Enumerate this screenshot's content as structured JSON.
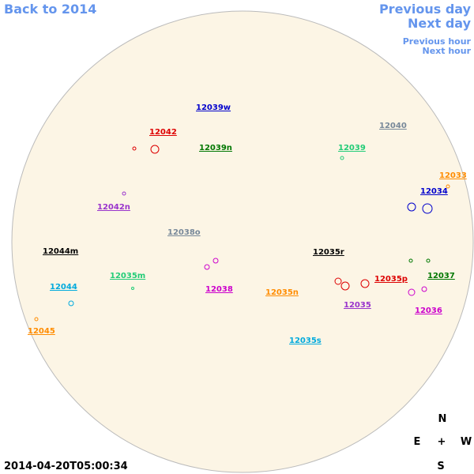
{
  "navigation": {
    "back": "Back to 2014",
    "previous_day": "Previous day",
    "next_day": "Next day",
    "previous_hour": "Previous hour",
    "next_hour": "Next hour"
  },
  "regions": [
    {
      "label": "12039w",
      "color": "#0000cc"
    },
    {
      "label": "12042",
      "color": "#dd0000"
    },
    {
      "label": "12039n",
      "color": "#007700"
    },
    {
      "label": "12040",
      "color": "#778899"
    },
    {
      "label": "12039",
      "color": "#22cc77"
    },
    {
      "label": "12033",
      "color": "#ff8c00"
    },
    {
      "label": "12034",
      "color": "#0000cc"
    },
    {
      "label": "12042n",
      "color": "#9933cc"
    },
    {
      "label": "12038o",
      "color": "#778899"
    },
    {
      "label": "12044m",
      "color": "#000000"
    },
    {
      "label": "12035r",
      "color": "#000000"
    },
    {
      "label": "12035m",
      "color": "#22cc77"
    },
    {
      "label": "12035p",
      "color": "#dd0000"
    },
    {
      "label": "12037",
      "color": "#007700"
    },
    {
      "label": "12044",
      "color": "#00aadd"
    },
    {
      "label": "12038",
      "color": "#cc00cc"
    },
    {
      "label": "12035n",
      "color": "#ff8c00"
    },
    {
      "label": "12035",
      "color": "#9933cc"
    },
    {
      "label": "12036",
      "color": "#cc00cc"
    },
    {
      "label": "12045",
      "color": "#ff8c00"
    },
    {
      "label": "12035s",
      "color": "#00aadd"
    }
  ],
  "compass": {
    "north": "N",
    "east": "E",
    "center": "+",
    "west": "W",
    "south": "S"
  },
  "timestamp": "2014-04-20T05:00:34"
}
